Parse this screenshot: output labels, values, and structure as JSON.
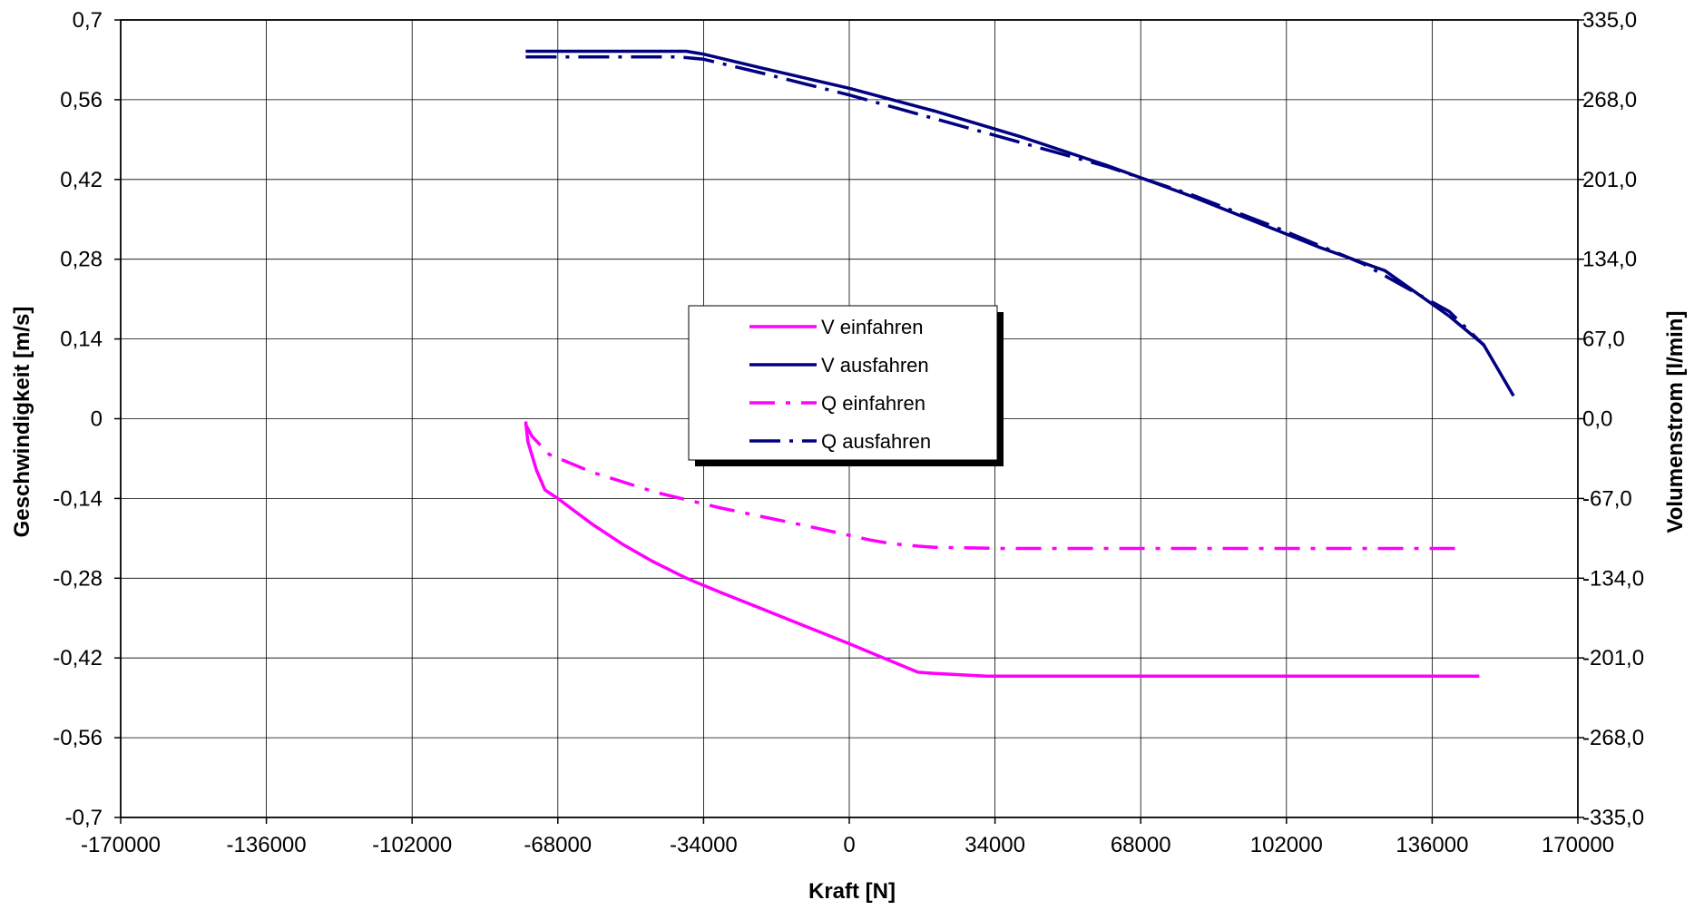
{
  "chart_data": {
    "type": "line",
    "title": "",
    "xlabel": "Kraft [N]",
    "ylabel": "Geschwindigkeit [m/s]",
    "y2label": "Volumenstrom [l/min]",
    "xlim": [
      -170000,
      170000
    ],
    "ylim": [
      -0.7,
      0.7
    ],
    "y2lim": [
      -335.0,
      335.0
    ],
    "grid": true,
    "legend_position": "center",
    "x_tick_labels": [
      "-170000",
      "-136000",
      "-102000",
      "-68000",
      "-34000",
      "0",
      "34000",
      "68000",
      "102000",
      "136000",
      "170000"
    ],
    "y_tick_labels": [
      "0,7",
      "0,56",
      "0,42",
      "0,28",
      "0,14",
      "0",
      "-0,14",
      "-0,28",
      "-0,42",
      "-0,56",
      "-0,7"
    ],
    "y2_tick_labels": [
      "335,0",
      "268,0",
      "201,0",
      "134,0",
      "67,0",
      "0,0",
      "-67,0",
      "-134,0",
      "-201,0",
      "-268,0",
      "-335,0"
    ],
    "series": [
      {
        "name": "V einfahren",
        "axis": "left",
        "color": "#ff00ff",
        "dash": "solid",
        "x": [
          -75500,
          -75000,
          -73000,
          -71000,
          -68000,
          -60000,
          -53000,
          -46000,
          -38000,
          -30000,
          -20000,
          -10000,
          0,
          8000,
          16000,
          20000,
          32000,
          60000,
          100000,
          147000
        ],
        "y": [
          -0.005,
          -0.04,
          -0.09,
          -0.125,
          -0.14,
          -0.185,
          -0.22,
          -0.25,
          -0.28,
          -0.305,
          -0.335,
          -0.365,
          -0.395,
          -0.42,
          -0.445,
          -0.447,
          -0.452,
          -0.452,
          -0.452,
          -0.452
        ]
      },
      {
        "name": "V ausfahren",
        "axis": "left",
        "color": "#000080",
        "dash": "solid",
        "x": [
          -75500,
          -38000,
          -34000,
          -20000,
          0,
          20000,
          40000,
          60000,
          80000,
          100000,
          110000,
          125000,
          140000,
          148000,
          155000
        ],
        "y": [
          0.645,
          0.645,
          0.64,
          0.615,
          0.58,
          0.54,
          0.495,
          0.445,
          0.39,
          0.33,
          0.3,
          0.26,
          0.18,
          0.13,
          0.04
        ]
      },
      {
        "name": "Q einfahren",
        "axis": "right",
        "color": "#ff00ff",
        "dash": "dashdot",
        "x": [
          -75500,
          -74000,
          -70000,
          -60000,
          -45000,
          -30000,
          -10000,
          5000,
          10000,
          16000,
          20000,
          35000,
          70000,
          110000,
          142000
        ],
        "y": [
          -5.0,
          -15.0,
          -30.0,
          -45.0,
          -62.0,
          -75.0,
          -90.0,
          -102.0,
          -105.0,
          -107.0,
          -108.0,
          -109.0,
          -109.0,
          -109.0,
          -109.0
        ]
      },
      {
        "name": "Q ausfahren",
        "axis": "right",
        "color": "#000080",
        "dash": "longdashdot",
        "x": [
          -75500,
          -40000,
          -34000,
          -20000,
          0,
          20000,
          40000,
          60000,
          80000,
          100000,
          120000,
          140000,
          148000
        ],
        "y": [
          304.0,
          304.0,
          302.0,
          290.0,
          272.0,
          252.0,
          232.0,
          212.0,
          188.0,
          160.0,
          130.0,
          90.0,
          62.0
        ]
      }
    ]
  }
}
